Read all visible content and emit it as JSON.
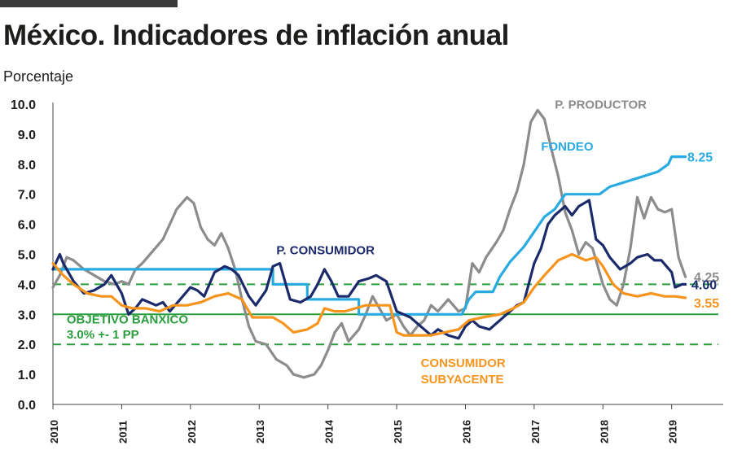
{
  "header": {
    "title": "México. Indicadores de inflación anual",
    "subtitle": "Porcentaje"
  },
  "colors": {
    "consumidor": "#1b2a6b",
    "productor": "#8c8c8c",
    "fondeo": "#29abe2",
    "subyacente": "#f7941d",
    "banxico": "#2a9d3e",
    "axis_text": "#1d1d1b"
  },
  "chart_data": {
    "type": "line",
    "title": "México. Indicadores de inflación anual",
    "ylabel": "Porcentaje",
    "xlabel": "",
    "ylim": [
      0,
      10
    ],
    "xlim": [
      2010,
      2019.75
    ],
    "grid": false,
    "y_ticks": [
      "0.0",
      "1.0",
      "2.0",
      "3.0",
      "4.0",
      "5.0",
      "6.0",
      "7.0",
      "8.0",
      "9.0",
      "10.0"
    ],
    "x_ticks": [
      "2010",
      "2011",
      "2012",
      "2013",
      "2014",
      "2015",
      "2016",
      "2017",
      "2018",
      "2019"
    ],
    "series": [
      {
        "name": "P. PRODUCTOR",
        "color": "#8c8c8c",
        "end_label": "4.25",
        "points": [
          [
            2010.0,
            3.9
          ],
          [
            2010.1,
            4.3
          ],
          [
            2010.2,
            4.9
          ],
          [
            2010.3,
            4.8
          ],
          [
            2010.45,
            4.5
          ],
          [
            2010.6,
            4.3
          ],
          [
            2010.75,
            4.1
          ],
          [
            2010.9,
            4.0
          ],
          [
            2011.0,
            4.1
          ],
          [
            2011.1,
            4.0
          ],
          [
            2011.2,
            4.5
          ],
          [
            2011.3,
            4.7
          ],
          [
            2011.45,
            5.1
          ],
          [
            2011.6,
            5.5
          ],
          [
            2011.7,
            6.0
          ],
          [
            2011.8,
            6.5
          ],
          [
            2011.95,
            6.9
          ],
          [
            2012.05,
            6.7
          ],
          [
            2012.15,
            5.9
          ],
          [
            2012.25,
            5.5
          ],
          [
            2012.35,
            5.3
          ],
          [
            2012.45,
            5.7
          ],
          [
            2012.55,
            5.2
          ],
          [
            2012.65,
            4.5
          ],
          [
            2012.75,
            3.5
          ],
          [
            2012.85,
            2.6
          ],
          [
            2012.95,
            2.1
          ],
          [
            2013.1,
            2.0
          ],
          [
            2013.25,
            1.5
          ],
          [
            2013.4,
            1.3
          ],
          [
            2013.5,
            1.0
          ],
          [
            2013.65,
            0.9
          ],
          [
            2013.8,
            1.0
          ],
          [
            2013.9,
            1.3
          ],
          [
            2014.0,
            1.8
          ],
          [
            2014.1,
            2.4
          ],
          [
            2014.2,
            2.7
          ],
          [
            2014.3,
            2.1
          ],
          [
            2014.45,
            2.5
          ],
          [
            2014.55,
            3.0
          ],
          [
            2014.65,
            3.6
          ],
          [
            2014.75,
            3.2
          ],
          [
            2014.85,
            2.8
          ],
          [
            2015.0,
            3.0
          ],
          [
            2015.1,
            2.6
          ],
          [
            2015.2,
            2.3
          ],
          [
            2015.3,
            2.6
          ],
          [
            2015.4,
            2.8
          ],
          [
            2015.5,
            3.3
          ],
          [
            2015.6,
            3.1
          ],
          [
            2015.75,
            3.5
          ],
          [
            2015.9,
            3.1
          ],
          [
            2016.0,
            3.2
          ],
          [
            2016.1,
            4.7
          ],
          [
            2016.2,
            4.4
          ],
          [
            2016.3,
            4.9
          ],
          [
            2016.45,
            5.4
          ],
          [
            2016.55,
            5.8
          ],
          [
            2016.65,
            6.5
          ],
          [
            2016.75,
            7.1
          ],
          [
            2016.85,
            8.0
          ],
          [
            2016.95,
            9.4
          ],
          [
            2017.05,
            9.8
          ],
          [
            2017.15,
            9.5
          ],
          [
            2017.25,
            8.5
          ],
          [
            2017.35,
            7.6
          ],
          [
            2017.45,
            6.4
          ],
          [
            2017.55,
            5.8
          ],
          [
            2017.65,
            5.0
          ],
          [
            2017.75,
            5.4
          ],
          [
            2017.85,
            5.2
          ],
          [
            2018.0,
            4.0
          ],
          [
            2018.1,
            3.5
          ],
          [
            2018.2,
            3.3
          ],
          [
            2018.3,
            4.0
          ],
          [
            2018.4,
            5.2
          ],
          [
            2018.5,
            6.9
          ],
          [
            2018.6,
            6.2
          ],
          [
            2018.7,
            6.9
          ],
          [
            2018.8,
            6.5
          ],
          [
            2018.9,
            6.4
          ],
          [
            2019.0,
            6.5
          ],
          [
            2019.1,
            4.9
          ],
          [
            2019.2,
            4.25
          ]
        ]
      },
      {
        "name": "FONDEO",
        "color": "#29abe2",
        "end_label": "8.25",
        "points": [
          [
            2010.0,
            4.5
          ],
          [
            2013.2,
            4.5
          ],
          [
            2013.2,
            4.0
          ],
          [
            2013.7,
            4.0
          ],
          [
            2013.7,
            3.5
          ],
          [
            2014.45,
            3.5
          ],
          [
            2014.45,
            3.0
          ],
          [
            2015.95,
            3.0
          ],
          [
            2016.05,
            3.5
          ],
          [
            2016.15,
            3.75
          ],
          [
            2016.4,
            3.75
          ],
          [
            2016.5,
            4.25
          ],
          [
            2016.65,
            4.75
          ],
          [
            2016.85,
            5.25
          ],
          [
            2017.0,
            5.75
          ],
          [
            2017.15,
            6.25
          ],
          [
            2017.3,
            6.5
          ],
          [
            2017.45,
            7.0
          ],
          [
            2017.95,
            7.0
          ],
          [
            2018.1,
            7.25
          ],
          [
            2018.45,
            7.5
          ],
          [
            2018.8,
            7.75
          ],
          [
            2018.95,
            8.0
          ],
          [
            2019.0,
            8.25
          ],
          [
            2019.2,
            8.25
          ]
        ]
      },
      {
        "name": "P. CONSUMIDOR",
        "color": "#1b2a6b",
        "end_label": "4.00",
        "points": [
          [
            2010.0,
            4.5
          ],
          [
            2010.1,
            5.0
          ],
          [
            2010.15,
            4.7
          ],
          [
            2010.3,
            4.1
          ],
          [
            2010.45,
            3.7
          ],
          [
            2010.6,
            3.8
          ],
          [
            2010.75,
            4.0
          ],
          [
            2010.85,
            4.3
          ],
          [
            2011.0,
            3.7
          ],
          [
            2011.1,
            3.0
          ],
          [
            2011.2,
            3.2
          ],
          [
            2011.3,
            3.5
          ],
          [
            2011.5,
            3.3
          ],
          [
            2011.6,
            3.4
          ],
          [
            2011.7,
            3.1
          ],
          [
            2011.85,
            3.5
          ],
          [
            2012.0,
            3.9
          ],
          [
            2012.1,
            3.8
          ],
          [
            2012.2,
            3.6
          ],
          [
            2012.35,
            4.4
          ],
          [
            2012.5,
            4.6
          ],
          [
            2012.6,
            4.5
          ],
          [
            2012.7,
            4.3
          ],
          [
            2012.85,
            3.6
          ],
          [
            2012.95,
            3.3
          ],
          [
            2013.1,
            3.8
          ],
          [
            2013.2,
            4.6
          ],
          [
            2013.3,
            4.7
          ],
          [
            2013.45,
            3.5
          ],
          [
            2013.6,
            3.4
          ],
          [
            2013.75,
            3.6
          ],
          [
            2013.85,
            4.0
          ],
          [
            2013.95,
            4.5
          ],
          [
            2014.05,
            4.1
          ],
          [
            2014.15,
            3.6
          ],
          [
            2014.3,
            3.6
          ],
          [
            2014.45,
            4.1
          ],
          [
            2014.6,
            4.2
          ],
          [
            2014.7,
            4.3
          ],
          [
            2014.85,
            4.1
          ],
          [
            2015.0,
            3.1
          ],
          [
            2015.1,
            3.0
          ],
          [
            2015.2,
            2.9
          ],
          [
            2015.35,
            2.6
          ],
          [
            2015.5,
            2.3
          ],
          [
            2015.6,
            2.5
          ],
          [
            2015.75,
            2.3
          ],
          [
            2015.9,
            2.2
          ],
          [
            2016.0,
            2.6
          ],
          [
            2016.1,
            2.8
          ],
          [
            2016.2,
            2.6
          ],
          [
            2016.35,
            2.5
          ],
          [
            2016.5,
            2.8
          ],
          [
            2016.6,
            3.0
          ],
          [
            2016.75,
            3.3
          ],
          [
            2016.85,
            3.4
          ],
          [
            2017.0,
            4.7
          ],
          [
            2017.1,
            5.2
          ],
          [
            2017.2,
            6.0
          ],
          [
            2017.3,
            6.3
          ],
          [
            2017.45,
            6.6
          ],
          [
            2017.55,
            6.3
          ],
          [
            2017.65,
            6.6
          ],
          [
            2017.8,
            6.8
          ],
          [
            2017.9,
            5.5
          ],
          [
            2018.0,
            5.3
          ],
          [
            2018.1,
            4.9
          ],
          [
            2018.25,
            4.5
          ],
          [
            2018.4,
            4.7
          ],
          [
            2018.5,
            4.9
          ],
          [
            2018.65,
            5.0
          ],
          [
            2018.75,
            4.8
          ],
          [
            2018.85,
            4.8
          ],
          [
            2019.0,
            4.4
          ],
          [
            2019.05,
            3.9
          ],
          [
            2019.15,
            4.0
          ],
          [
            2019.2,
            4.0
          ]
        ]
      },
      {
        "name": "CONSUMIDOR SUBYACENTE",
        "color": "#f7941d",
        "end_label": "3.55",
        "points": [
          [
            2010.0,
            4.7
          ],
          [
            2010.15,
            4.3
          ],
          [
            2010.3,
            4.0
          ],
          [
            2010.5,
            3.7
          ],
          [
            2010.7,
            3.6
          ],
          [
            2010.85,
            3.6
          ],
          [
            2011.0,
            3.3
          ],
          [
            2011.15,
            3.2
          ],
          [
            2011.35,
            3.2
          ],
          [
            2011.55,
            3.1
          ],
          [
            2011.75,
            3.3
          ],
          [
            2011.95,
            3.3
          ],
          [
            2012.15,
            3.4
          ],
          [
            2012.35,
            3.6
          ],
          [
            2012.55,
            3.7
          ],
          [
            2012.75,
            3.5
          ],
          [
            2012.9,
            2.9
          ],
          [
            2013.05,
            2.9
          ],
          [
            2013.2,
            2.9
          ],
          [
            2013.35,
            2.7
          ],
          [
            2013.5,
            2.4
          ],
          [
            2013.7,
            2.5
          ],
          [
            2013.85,
            2.7
          ],
          [
            2013.95,
            3.2
          ],
          [
            2014.1,
            3.1
          ],
          [
            2014.25,
            3.1
          ],
          [
            2014.4,
            3.2
          ],
          [
            2014.55,
            3.3
          ],
          [
            2014.7,
            3.3
          ],
          [
            2014.9,
            3.3
          ],
          [
            2015.0,
            2.4
          ],
          [
            2015.1,
            2.3
          ],
          [
            2015.3,
            2.3
          ],
          [
            2015.5,
            2.3
          ],
          [
            2015.7,
            2.4
          ],
          [
            2015.9,
            2.5
          ],
          [
            2016.05,
            2.8
          ],
          [
            2016.25,
            2.9
          ],
          [
            2016.5,
            3.0
          ],
          [
            2016.7,
            3.2
          ],
          [
            2016.85,
            3.4
          ],
          [
            2017.0,
            3.9
          ],
          [
            2017.15,
            4.3
          ],
          [
            2017.35,
            4.8
          ],
          [
            2017.55,
            5.0
          ],
          [
            2017.75,
            4.8
          ],
          [
            2017.9,
            4.9
          ],
          [
            2018.0,
            4.6
          ],
          [
            2018.15,
            4.0
          ],
          [
            2018.3,
            3.7
          ],
          [
            2018.5,
            3.6
          ],
          [
            2018.7,
            3.7
          ],
          [
            2018.9,
            3.6
          ],
          [
            2019.05,
            3.6
          ],
          [
            2019.2,
            3.55
          ]
        ]
      }
    ],
    "reference_lines": [
      {
        "value": 3.0,
        "style": "solid",
        "color": "#2a9d3e"
      },
      {
        "value": 4.0,
        "style": "dashed",
        "color": "#2a9d3e"
      },
      {
        "value": 2.0,
        "style": "dashed",
        "color": "#2a9d3e"
      }
    ],
    "annotations": [
      {
        "text": "P. PRODUCTOR",
        "x": 2017.3,
        "y": 9.85,
        "color": "#8c8c8c"
      },
      {
        "text": "FONDEO",
        "x": 2017.1,
        "y": 8.45,
        "color": "#29abe2"
      },
      {
        "text": "P. CONSUMIDOR",
        "x": 2013.25,
        "y": 5.0,
        "color": "#1b2a6b"
      },
      {
        "text": "OBJETIVO BANXICO",
        "x": 2010.2,
        "y": 2.7,
        "color": "#2a9d3e"
      },
      {
        "text": "3.0% +- 1 PP",
        "x": 2010.2,
        "y": 2.2,
        "color": "#2a9d3e"
      },
      {
        "text": "CONSUMIDOR",
        "x": 2015.35,
        "y": 1.25,
        "color": "#f7941d"
      },
      {
        "text": "SUBYACENTE",
        "x": 2015.35,
        "y": 0.7,
        "color": "#f7941d"
      }
    ]
  }
}
